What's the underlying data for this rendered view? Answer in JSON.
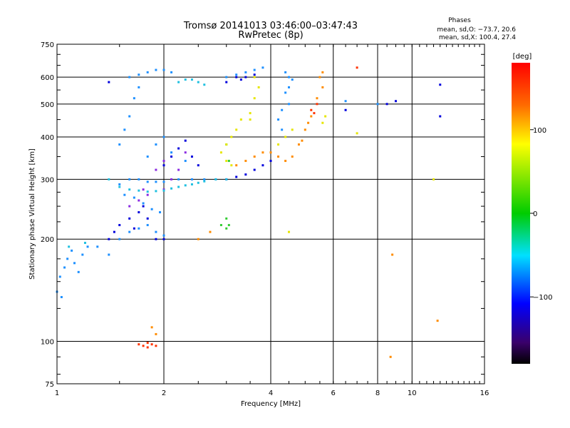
{
  "chart_data": {
    "type": "scatter",
    "title": "Tromsø 20141013 03:46:00–03:47:43",
    "subtitle": "RwPretec (8p)",
    "xlabel": "Frequency [MHz]",
    "ylabel": "Stationary phase Virtual Height [km]",
    "x_scale": "log2",
    "y_scale": "log",
    "xlim": [
      1,
      16
    ],
    "ylim": [
      75,
      750
    ],
    "x_ticks": [
      1,
      2,
      4,
      6,
      8,
      10,
      16
    ],
    "x_tick_labels": [
      "1",
      "2",
      "4",
      "6",
      "8",
      "10",
      "16"
    ],
    "y_ticks": [
      75,
      100,
      200,
      300,
      400,
      500,
      600,
      750
    ],
    "y_tick_labels": [
      "75",
      "100",
      "200",
      "300",
      "400",
      "500",
      "600",
      "750"
    ],
    "grid": true,
    "stats_header": "Phases",
    "stats": [
      "mean, sd,O: −73.7, 20.6",
      "mean, sd,X: 100.4, 27.4"
    ],
    "colorbar": {
      "label": "[deg]",
      "range": [
        -180,
        180
      ],
      "ticks": [
        100,
        0,
        -100
      ],
      "tick_labels": [
        "100",
        "0",
        "−100"
      ]
    },
    "series": [
      {
        "color": "#1e90ff",
        "points": [
          [
            1.0,
            140
          ],
          [
            1.02,
            155
          ],
          [
            1.05,
            165
          ],
          [
            1.07,
            175
          ],
          [
            1.1,
            185
          ],
          [
            1.03,
            135
          ],
          [
            1.12,
            170
          ],
          [
            1.15,
            160
          ],
          [
            1.18,
            180
          ],
          [
            1.22,
            190
          ],
          [
            1.3,
            190
          ],
          [
            1.4,
            180
          ],
          [
            1.5,
            290
          ],
          [
            1.6,
            300
          ],
          [
            1.7,
            300
          ],
          [
            1.8,
            295
          ],
          [
            1.9,
            295
          ],
          [
            2.0,
            295
          ],
          [
            2.2,
            300
          ],
          [
            2.4,
            300
          ],
          [
            2.6,
            300
          ],
          [
            2.8,
            300
          ],
          [
            1.5,
            200
          ],
          [
            1.6,
            210
          ],
          [
            1.7,
            215
          ],
          [
            1.8,
            220
          ],
          [
            1.9,
            210
          ],
          [
            2.0,
            205
          ],
          [
            1.55,
            270
          ],
          [
            1.65,
            265
          ],
          [
            1.75,
            255
          ],
          [
            1.85,
            245
          ],
          [
            1.95,
            240
          ],
          [
            1.6,
            600
          ],
          [
            1.7,
            610
          ],
          [
            1.8,
            620
          ],
          [
            1.9,
            630
          ],
          [
            2.0,
            630
          ],
          [
            2.1,
            620
          ],
          [
            1.5,
            380
          ],
          [
            1.55,
            420
          ],
          [
            1.6,
            460
          ],
          [
            1.65,
            520
          ],
          [
            1.7,
            560
          ],
          [
            1.8,
            350
          ],
          [
            1.9,
            380
          ],
          [
            2.0,
            400
          ],
          [
            2.1,
            360
          ],
          [
            2.3,
            340
          ],
          [
            3.0,
            600
          ],
          [
            3.2,
            610
          ],
          [
            3.4,
            620
          ],
          [
            3.6,
            630
          ],
          [
            3.8,
            640
          ],
          [
            4.4,
            620
          ],
          [
            4.5,
            600
          ],
          [
            4.6,
            590
          ],
          [
            4.5,
            560
          ],
          [
            4.4,
            540
          ],
          [
            4.3,
            420
          ],
          [
            4.2,
            450
          ],
          [
            4.3,
            480
          ],
          [
            4.5,
            500
          ],
          [
            6.5,
            510
          ],
          [
            8.0,
            500
          ]
        ]
      },
      {
        "color": "#0000dd",
        "points": [
          [
            1.4,
            200
          ],
          [
            1.45,
            210
          ],
          [
            1.5,
            220
          ],
          [
            1.6,
            230
          ],
          [
            1.7,
            240
          ],
          [
            1.75,
            250
          ],
          [
            1.8,
            230
          ],
          [
            1.9,
            200
          ],
          [
            2.0,
            200
          ],
          [
            1.65,
            215
          ],
          [
            2.0,
            330
          ],
          [
            2.1,
            350
          ],
          [
            2.2,
            370
          ],
          [
            2.3,
            390
          ],
          [
            2.4,
            350
          ],
          [
            2.5,
            330
          ],
          [
            3.0,
            300
          ],
          [
            3.2,
            305
          ],
          [
            3.4,
            310
          ],
          [
            3.6,
            320
          ],
          [
            3.8,
            330
          ],
          [
            4.0,
            340
          ],
          [
            3.2,
            600
          ],
          [
            3.4,
            600
          ],
          [
            3.6,
            610
          ],
          [
            3.0,
            580
          ],
          [
            3.3,
            590
          ],
          [
            1.4,
            580
          ],
          [
            6.5,
            480
          ],
          [
            8.5,
            500
          ],
          [
            9.0,
            510
          ],
          [
            12.0,
            570
          ],
          [
            12.0,
            460
          ]
        ]
      },
      {
        "color": "#8a2be2",
        "points": [
          [
            1.6,
            250
          ],
          [
            1.7,
            260
          ],
          [
            1.75,
            280
          ],
          [
            1.8,
            270
          ],
          [
            1.9,
            320
          ],
          [
            2.0,
            340
          ],
          [
            2.1,
            300
          ],
          [
            2.2,
            320
          ],
          [
            2.3,
            360
          ],
          [
            2.0,
            280
          ]
        ]
      },
      {
        "color": "#20c0e0",
        "points": [
          [
            1.4,
            300
          ],
          [
            1.5,
            285
          ],
          [
            1.6,
            280
          ],
          [
            1.7,
            278
          ],
          [
            1.8,
            276
          ],
          [
            1.9,
            277
          ],
          [
            2.0,
            278
          ],
          [
            2.1,
            282
          ],
          [
            2.2,
            285
          ],
          [
            2.3,
            288
          ],
          [
            2.4,
            290
          ],
          [
            2.5,
            293
          ],
          [
            2.6,
            296
          ],
          [
            2.8,
            300
          ],
          [
            3.0,
            300
          ],
          [
            1.08,
            190
          ],
          [
            1.2,
            195
          ],
          [
            2.2,
            580
          ],
          [
            2.3,
            590
          ],
          [
            2.4,
            590
          ],
          [
            2.5,
            580
          ],
          [
            2.6,
            570
          ]
        ]
      },
      {
        "color": "#33cc33",
        "points": [
          [
            2.9,
            220
          ],
          [
            3.0,
            215
          ],
          [
            3.05,
            220
          ],
          [
            3.0,
            230
          ],
          [
            3.0,
            380
          ],
          [
            3.05,
            340
          ]
        ]
      },
      {
        "color": "#e6e600",
        "points": [
          [
            2.9,
            360
          ],
          [
            3.0,
            380
          ],
          [
            3.1,
            400
          ],
          [
            3.2,
            420
          ],
          [
            3.0,
            340
          ],
          [
            3.1,
            330
          ],
          [
            3.3,
            450
          ],
          [
            3.5,
            470
          ],
          [
            3.6,
            520
          ],
          [
            3.7,
            560
          ],
          [
            3.6,
            600
          ],
          [
            3.5,
            450
          ],
          [
            4.2,
            380
          ],
          [
            4.4,
            400
          ],
          [
            4.6,
            420
          ],
          [
            5.6,
            440
          ],
          [
            5.7,
            460
          ],
          [
            4.5,
            210
          ],
          [
            11.5,
            300
          ],
          [
            7.0,
            410
          ]
        ]
      },
      {
        "color": "#ff8c00",
        "points": [
          [
            3.2,
            330
          ],
          [
            3.4,
            340
          ],
          [
            3.6,
            350
          ],
          [
            3.8,
            360
          ],
          [
            4.0,
            360
          ],
          [
            4.2,
            350
          ],
          [
            4.4,
            340
          ],
          [
            4.6,
            350
          ],
          [
            4.8,
            380
          ],
          [
            5.0,
            420
          ],
          [
            5.2,
            460
          ],
          [
            5.4,
            520
          ],
          [
            5.6,
            560
          ],
          [
            5.5,
            600
          ],
          [
            5.6,
            620
          ],
          [
            4.9,
            390
          ],
          [
            5.1,
            440
          ],
          [
            2.5,
            200
          ],
          [
            2.7,
            210
          ],
          [
            1.9,
            105
          ],
          [
            1.85,
            110
          ],
          [
            8.8,
            180
          ],
          [
            11.8,
            115
          ],
          [
            8.7,
            90
          ]
        ]
      },
      {
        "color": "#ff3300",
        "points": [
          [
            1.7,
            98
          ],
          [
            1.75,
            97
          ],
          [
            1.8,
            99
          ],
          [
            1.85,
            98
          ],
          [
            1.9,
            97
          ],
          [
            1.8,
            96
          ],
          [
            5.2,
            480
          ],
          [
            5.3,
            470
          ],
          [
            5.4,
            500
          ],
          [
            7.0,
            640
          ]
        ]
      }
    ]
  }
}
